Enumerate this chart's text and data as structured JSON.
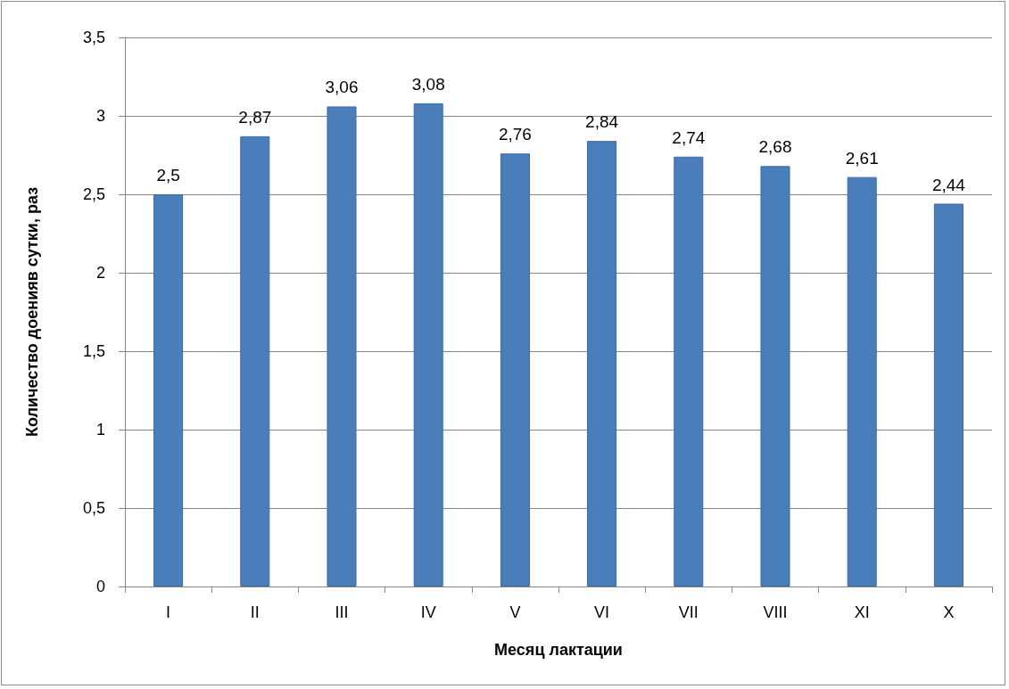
{
  "chart_data": {
    "type": "bar",
    "xlabel": "Месяц лактации",
    "ylabel": "Количество доенияв сутки, раз",
    "categories": [
      "I",
      "II",
      "III",
      "IV",
      "V",
      "VI",
      "VII",
      "VIII",
      "XI",
      "X"
    ],
    "values": [
      2.5,
      2.87,
      3.06,
      3.08,
      2.76,
      2.84,
      2.74,
      2.68,
      2.61,
      2.44
    ],
    "value_labels": [
      "2,5",
      "2,87",
      "3,06",
      "3,08",
      "2,76",
      "2,84",
      "2,74",
      "2,68",
      "2,61",
      "2,44"
    ],
    "color": "#4a7ebb",
    "ylim": [
      0,
      3.5
    ],
    "yticks": [
      0,
      {
        "value": 0.5,
        "label": "0,5"
      },
      1,
      {
        "value": 1.5,
        "label": "1,5"
      },
      2,
      {
        "value": 2.5,
        "label": "2,5"
      },
      3,
      {
        "value": 3.5,
        "label": "3,5"
      }
    ],
    "grid": "y"
  }
}
